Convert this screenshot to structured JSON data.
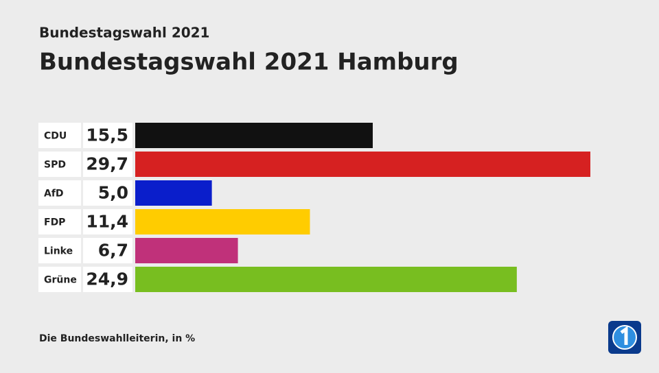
{
  "chart_data": {
    "type": "bar",
    "orientation": "horizontal",
    "supertitle": "Bundestagswahl 2021",
    "title": "Bundestagswahl 2021 Hamburg",
    "source": "Die Bundeswahlleiterin, in %",
    "categories": [
      "CDU",
      "SPD",
      "AfD",
      "FDP",
      "Linke",
      "Grüne"
    ],
    "values": [
      15.5,
      29.7,
      5.0,
      11.4,
      6.7,
      24.9
    ],
    "value_labels": [
      "15,5",
      "29,7",
      "5,0",
      "11,4",
      "6,7",
      "24,9"
    ],
    "colors": [
      "#111111",
      "#d62121",
      "#0a1ecb",
      "#ffcc00",
      "#c0317a",
      "#78be20"
    ]
  }
}
